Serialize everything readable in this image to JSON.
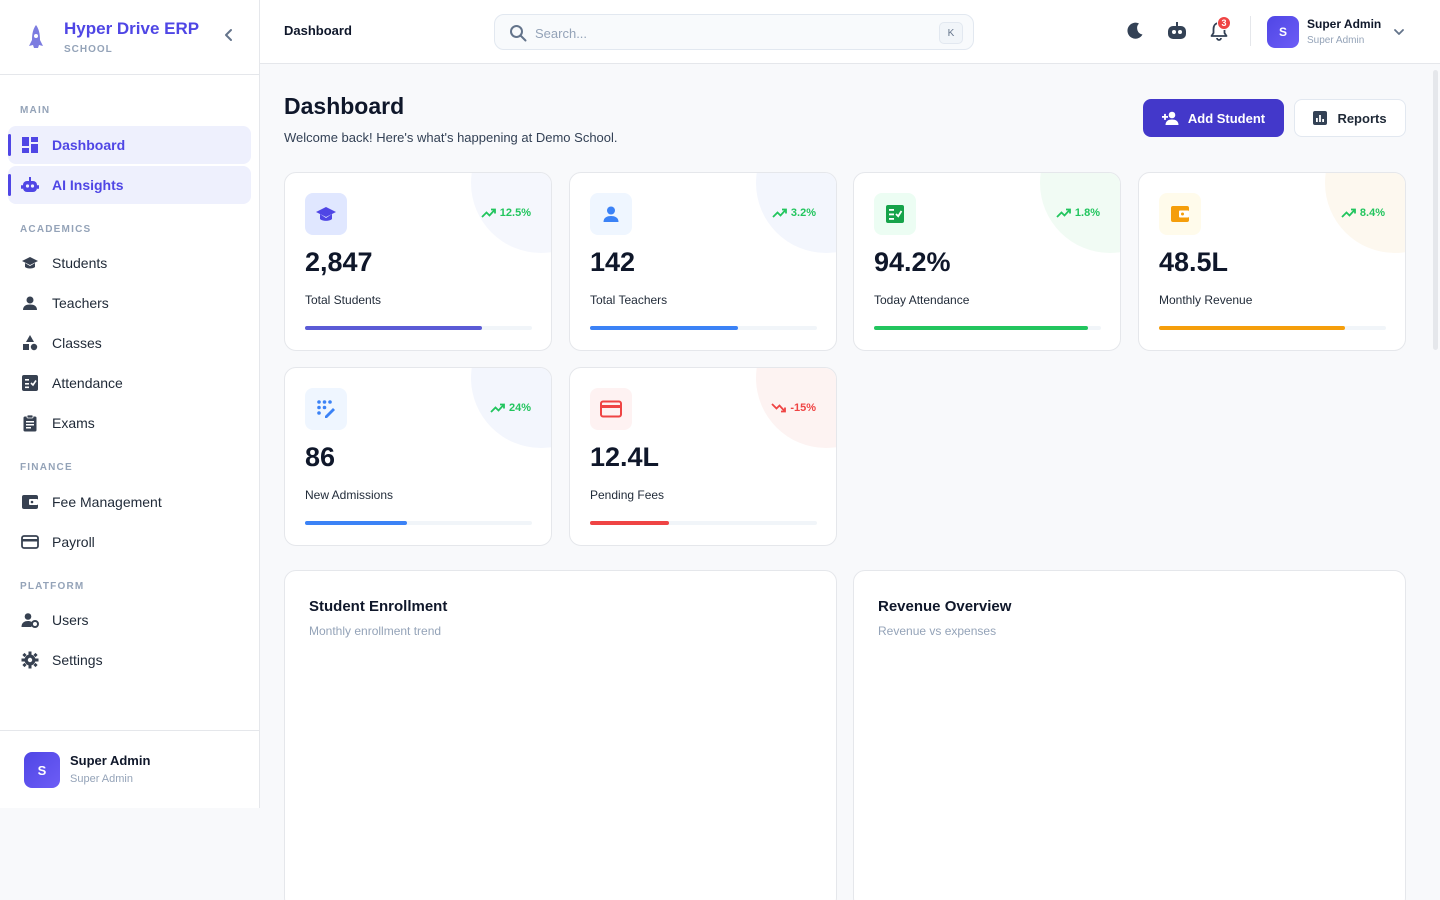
{
  "brand": {
    "title": "Hyper Drive ERP",
    "subtitle": "SCHOOL",
    "logo_icon": "rocket-icon"
  },
  "sidebar": {
    "sections": [
      {
        "label": "MAIN"
      },
      {
        "label": "ACADEMICS"
      },
      {
        "label": "FINANCE"
      },
      {
        "label": "PLATFORM"
      }
    ],
    "items": [
      {
        "label": "Dashboard",
        "icon": "dashboard-icon",
        "active": true
      },
      {
        "label": "AI Insights",
        "icon": "robot-icon",
        "active": true
      },
      {
        "label": "Students",
        "icon": "graduation-cap-icon"
      },
      {
        "label": "Teachers",
        "icon": "person-icon"
      },
      {
        "label": "Classes",
        "icon": "shapes-icon"
      },
      {
        "label": "Attendance",
        "icon": "attendance-icon"
      },
      {
        "label": "Exams",
        "icon": "clipboard-icon"
      },
      {
        "label": "Fee Management",
        "icon": "wallet-icon"
      },
      {
        "label": "Payroll",
        "icon": "credit-card-icon"
      },
      {
        "label": "Users",
        "icon": "users-gear-icon"
      },
      {
        "label": "Settings",
        "icon": "gear-icon"
      }
    ],
    "footer": {
      "avatar": "S",
      "name": "Super Admin",
      "role": "Super Admin"
    }
  },
  "header": {
    "title": "Dashboard",
    "search": {
      "placeholder": "Search...",
      "value": "",
      "shortcut": "K"
    },
    "notifications_count": "3",
    "user": {
      "avatar": "S",
      "name": "Super Admin",
      "role": "Super Admin"
    }
  },
  "page": {
    "title": "Dashboard",
    "subtitle": "Welcome back! Here's what's happening at Demo School.",
    "primary_action": "Add Student",
    "secondary_action": "Reports"
  },
  "stats": [
    {
      "value": "2,847",
      "label": "Total Students",
      "trend": "12.5%",
      "trend_dir": "up",
      "progress": 0.78,
      "color": "#5b5bd6",
      "icon_bg": "#e0e7ff",
      "blob": "#f5f7fd",
      "icon": "graduation-cap-icon"
    },
    {
      "value": "142",
      "label": "Total Teachers",
      "trend": "3.2%",
      "trend_dir": "up",
      "progress": 0.65,
      "color": "#3b82f6",
      "icon_bg": "#eff6ff",
      "blob": "#f3f6fd",
      "icon": "person-icon"
    },
    {
      "value": "94.2%",
      "label": "Today Attendance",
      "trend": "1.8%",
      "trend_dir": "up",
      "progress": 0.942,
      "color": "#22c55e",
      "icon_bg": "#ecfdf3",
      "blob": "#f1fbf4",
      "icon": "attendance-icon"
    },
    {
      "value": "48.5L",
      "label": "Monthly Revenue",
      "trend": "8.4%",
      "trend_dir": "up",
      "progress": 0.82,
      "color": "#f59e0b",
      "icon_bg": "#fffbeb",
      "blob": "#fdf8ef",
      "icon": "wallet-icon"
    },
    {
      "value": "86",
      "label": "New Admissions",
      "trend": "24%",
      "trend_dir": "up",
      "progress": 0.45,
      "color": "#3b82f6",
      "icon_bg": "#eff6ff",
      "blob": "#f3f6fd",
      "icon": "edit-grid-icon"
    },
    {
      "value": "12.4L",
      "label": "Pending Fees",
      "trend": "-15%",
      "trend_dir": "down",
      "progress": 0.35,
      "color": "#ef4444",
      "icon_bg": "#fef2f2",
      "blob": "#fdf3f2",
      "icon": "credit-card-icon"
    }
  ],
  "charts": [
    {
      "title": "Student Enrollment",
      "subtitle": "Monthly enrollment trend"
    },
    {
      "title": "Revenue Overview",
      "subtitle": "Revenue vs expenses"
    }
  ],
  "colors": {
    "accent": "#4f46e5",
    "positive": "#22c55e",
    "negative": "#ef4444"
  }
}
